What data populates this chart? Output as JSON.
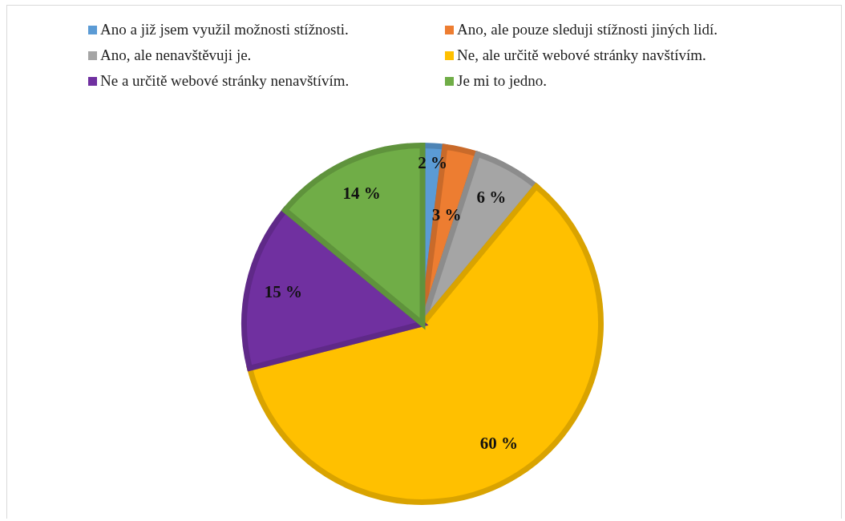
{
  "chart_data": {
    "type": "pie",
    "categories": [
      "Ano a již jsem využil možnosti stížnosti.",
      "Ano, ale pouze sleduji stížnosti jiných lidí.",
      "Ano, ale nenavštěvuji je.",
      "Ne, ale určitě webové stránky navštívím.",
      "Ne a určitě webové stránky nenavštívím.",
      "Je mi to jedno."
    ],
    "values": [
      2,
      3,
      6,
      60,
      15,
      14
    ],
    "colors": [
      "#5b9bd5",
      "#ed7d31",
      "#a5a5a5",
      "#ffc000",
      "#7030a0",
      "#70ad47"
    ],
    "value_labels": [
      "2 %",
      "3 %",
      "6 %",
      "60 %",
      "15 %",
      "14 %"
    ],
    "legend": "top"
  }
}
